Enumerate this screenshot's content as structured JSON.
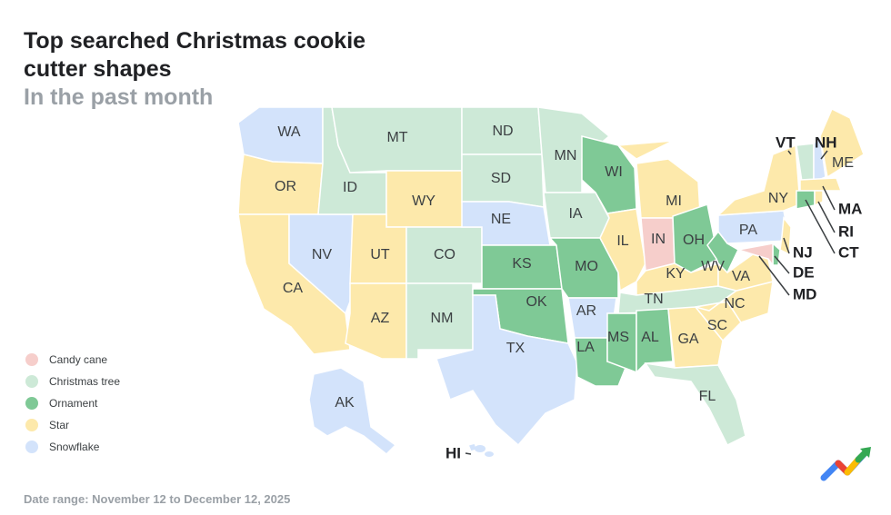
{
  "title": "Top searched Christmas cookie cutter shapes",
  "subtitle": "In the past month",
  "date_range": "Date range: November 12 to December 12, 2025",
  "logo": "Google Trends",
  "legend": [
    {
      "key": "candy",
      "label": "Candy cane",
      "color": "#f6cecb"
    },
    {
      "key": "tree",
      "label": "Christmas tree",
      "color": "#cde9d7"
    },
    {
      "key": "orn",
      "label": "Ornament",
      "color": "#7fc996"
    },
    {
      "key": "star",
      "label": "Star",
      "color": "#fde9ab"
    },
    {
      "key": "snow",
      "label": "Snowflake",
      "color": "#d3e3fb"
    }
  ],
  "states": {
    "WA": "snow",
    "OR": "star",
    "CA": "star",
    "NV": "snow",
    "ID": "tree",
    "MT": "tree",
    "WY": "star",
    "UT": "star",
    "AZ": "star",
    "CO": "tree",
    "NM": "tree",
    "ND": "tree",
    "SD": "tree",
    "NE": "snow",
    "KS": "orn",
    "OK": "orn",
    "TX": "snow",
    "MN": "tree",
    "IA": "tree",
    "MO": "orn",
    "AR": "snow",
    "LA": "orn",
    "WI": "orn",
    "IL": "star",
    "MI": "star",
    "IN": "candy",
    "OH": "orn",
    "KY": "star",
    "TN": "tree",
    "MS": "orn",
    "AL": "orn",
    "GA": "star",
    "FL": "tree",
    "SC": "star",
    "NC": "star",
    "VA": "star",
    "WV": "orn",
    "PA": "snow",
    "NY": "star",
    "NJ": "star",
    "DE": "orn",
    "MD": "candy",
    "VT": "tree",
    "NH": "snow",
    "ME": "star",
    "MA": "star",
    "CT": "orn",
    "RI": "star",
    "AK": "snow",
    "HI": "snow"
  }
}
